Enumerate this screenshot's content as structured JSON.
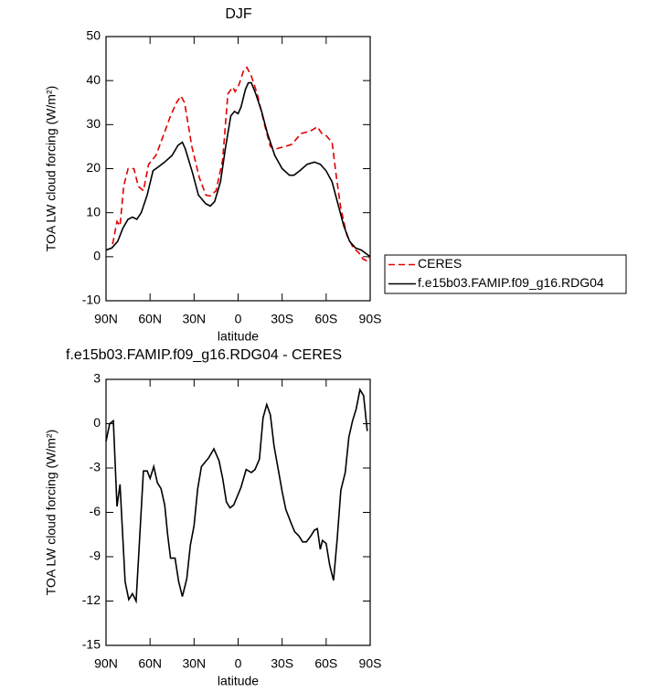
{
  "chart_data": [
    {
      "type": "line",
      "title": "DJF",
      "xlabel": "latitude",
      "ylabel": "TOA LW cloud forcing (W/m²)",
      "xlim": [
        90,
        -90
      ],
      "ylim": [
        -10,
        50
      ],
      "xticks": [
        {
          "value": 90,
          "label": "90N"
        },
        {
          "value": 60,
          "label": "60N"
        },
        {
          "value": 30,
          "label": "30N"
        },
        0,
        {
          "value": -30,
          "label": "30S"
        },
        {
          "value": -60,
          "label": "60S"
        },
        {
          "value": -90,
          "label": "90S"
        }
      ],
      "yticks": [
        50,
        40,
        30,
        20,
        10,
        0,
        -10
      ],
      "legend": "outside-right",
      "series": [
        {
          "name": "CERES",
          "color": "#e00000",
          "line_style": "dashed",
          "x": [
            90,
            86,
            82.5,
            80.5,
            78,
            75,
            71,
            68,
            64.5,
            61,
            56,
            51.5,
            46,
            42,
            39,
            36.5,
            31.5,
            26.5,
            22,
            19,
            15,
            10.5,
            7,
            3.7,
            2,
            -0.5,
            -4,
            -6,
            -9,
            -13,
            -18,
            -22,
            -26,
            -31.5,
            -36.5,
            -43,
            -49,
            -54,
            -57,
            -60,
            -64,
            -67,
            -70,
            -74,
            -78.5,
            -82,
            -85,
            -88,
            -90
          ],
          "values": [
            1.5,
            2,
            8,
            7,
            16,
            20,
            20,
            16,
            15,
            21,
            23,
            27,
            32,
            35,
            36.5,
            35,
            25,
            18,
            14,
            13.8,
            15,
            22,
            37,
            38.5,
            37.5,
            39,
            42.5,
            43,
            41,
            37,
            30,
            25,
            24.5,
            25,
            25.5,
            28,
            28.5,
            29.5,
            28,
            27.5,
            26,
            18,
            11,
            5,
            2,
            1,
            -0.5,
            -1,
            0
          ]
        },
        {
          "name": "f.e15b03.FAMIP.f09_g16.RDG04",
          "color": "#000000",
          "line_style": "solid",
          "x": [
            90,
            86,
            82,
            78.5,
            75,
            72,
            69,
            66,
            62,
            58,
            54,
            50,
            45,
            41,
            38,
            36,
            31,
            27,
            22,
            19,
            16,
            12,
            8.5,
            5,
            2.5,
            0,
            -2,
            -5,
            -7,
            -9,
            -12,
            -16,
            -20,
            -25,
            -30,
            -35,
            -38,
            -42,
            -47,
            -52,
            -56,
            -60,
            -64,
            -68,
            -72,
            -76,
            -80,
            -84,
            -88,
            -90
          ],
          "values": [
            1.5,
            2,
            3.5,
            6.5,
            8.5,
            9,
            8.5,
            10,
            14,
            19.5,
            20.5,
            21.5,
            23,
            25.3,
            26,
            24.5,
            19,
            14,
            12,
            11.5,
            12.5,
            17,
            25,
            32,
            33,
            32.5,
            34,
            38,
            39.5,
            39.5,
            37,
            33,
            28,
            23,
            20,
            18.5,
            18.5,
            19.5,
            21,
            21.5,
            21,
            19.5,
            17,
            12,
            7,
            3.5,
            2,
            1.5,
            0.5,
            0
          ]
        }
      ]
    },
    {
      "type": "line",
      "title": "f.e15b03.FAMIP.f09_g16.RDG04 - CERES",
      "xlabel": "latitude",
      "ylabel": "TOA LW cloud forcing (W/m²)",
      "xlim": [
        90,
        -90
      ],
      "ylim": [
        -15,
        3
      ],
      "xticks": [
        {
          "value": 90,
          "label": "90N"
        },
        {
          "value": 60,
          "label": "60N"
        },
        {
          "value": 30,
          "label": "30N"
        },
        0,
        {
          "value": -30,
          "label": "30S"
        },
        {
          "value": -60,
          "label": "60S"
        },
        {
          "value": -90,
          "label": "90S"
        }
      ],
      "yticks": [
        3,
        0,
        -3,
        -6,
        -9,
        -12,
        -15
      ],
      "color": "#000000",
      "x": [
        90,
        87.5,
        85,
        82.5,
        80.5,
        77,
        74.5,
        72,
        69.5,
        67.5,
        64.5,
        62,
        60,
        57.5,
        55,
        52.5,
        50,
        48,
        46,
        43,
        40.5,
        38,
        35,
        32.5,
        30,
        27.5,
        25,
        20,
        16.5,
        13,
        10.5,
        8,
        5.5,
        3,
        0.5,
        -2,
        -5.5,
        -9,
        -11.5,
        -14.5,
        -17,
        -19.5,
        -22,
        -24.5,
        -27.5,
        -30,
        -32.5,
        -36,
        -38.5,
        -41.5,
        -44,
        -46.5,
        -49.5,
        -52,
        -54,
        -56,
        -57.5,
        -60,
        -62.5,
        -65,
        -67.5,
        -70,
        -73,
        -75.5,
        -78,
        -80.5,
        -83,
        -85.5,
        -88
      ],
      "values": [
        -1.2,
        0,
        0.2,
        -5.6,
        -4.1,
        -10.7,
        -11.9,
        -11.5,
        -12,
        -8.5,
        -3.2,
        -3.2,
        -3.7,
        -2.9,
        -4,
        -4.4,
        -5.5,
        -7.5,
        -9.1,
        -9.1,
        -10.7,
        -11.7,
        -10.5,
        -8.2,
        -6.9,
        -4.4,
        -2.9,
        -2.3,
        -1.7,
        -2.5,
        -3.7,
        -5.3,
        -5.7,
        -5.5,
        -4.9,
        -4.3,
        -3.1,
        -3.3,
        -3.1,
        -2.4,
        0.4,
        1.3,
        0.6,
        -1.5,
        -3.2,
        -4.6,
        -5.8,
        -6.7,
        -7.3,
        -7.6,
        -8,
        -8,
        -7.6,
        -7.2,
        -7.1,
        -8.5,
        -7.9,
        -8.1,
        -9.6,
        -10.6,
        -7.8,
        -4.5,
        -3.3,
        -0.9,
        0.2,
        1,
        2.3,
        1.9,
        -0.5
      ]
    }
  ]
}
